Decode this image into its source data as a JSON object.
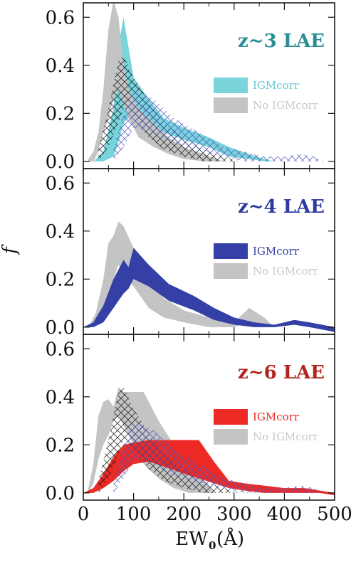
{
  "chart_data": [
    {
      "type": "area",
      "title": "z~3 LAE",
      "title_color": "#2a8f95",
      "xlabel": "EW",
      "xlabel_sub": "0",
      "xlabel_unit": "(Å)",
      "ylabel": "f",
      "xlim": [
        0,
        500
      ],
      "ylim": [
        -0.03,
        0.66
      ],
      "yticks": [
        "0.0",
        "0.2",
        "0.4",
        "0.6"
      ],
      "xticks": [
        "0",
        "100",
        "200",
        "300",
        "400",
        "500"
      ],
      "grid": false,
      "legend": "right",
      "series": [
        {
          "name": "IGMcorr",
          "color": "#79d4dc",
          "text_color": "#6cc7d1",
          "x": [
            20,
            40,
            60,
            70,
            80,
            100,
            130,
            160,
            200,
            250,
            290,
            330,
            360,
            380,
            400
          ],
          "upper": [
            0.0,
            0.04,
            0.22,
            0.48,
            0.6,
            0.35,
            0.26,
            0.18,
            0.14,
            0.1,
            0.06,
            0.03,
            0.01,
            0.0,
            0.0
          ],
          "lower": [
            0.0,
            0.0,
            0.02,
            0.08,
            0.16,
            0.2,
            0.16,
            0.12,
            0.09,
            0.06,
            0.02,
            0.01,
            0.0,
            0.0,
            0.0
          ]
        },
        {
          "name": "No IGMcorr",
          "color": "#c4c4c4",
          "text_color": "#c8c8c8",
          "x": [
            10,
            20,
            30,
            40,
            50,
            60,
            70,
            80,
            90,
            110,
            140,
            170,
            200,
            240,
            280
          ],
          "upper": [
            0.01,
            0.04,
            0.12,
            0.3,
            0.55,
            0.67,
            0.6,
            0.4,
            0.3,
            0.22,
            0.16,
            0.1,
            0.06,
            0.03,
            0.0
          ],
          "lower": [
            0.0,
            0.0,
            0.04,
            0.12,
            0.18,
            0.26,
            0.3,
            0.24,
            0.18,
            0.1,
            0.06,
            0.03,
            0.01,
            0.0,
            0.0
          ]
        }
      ]
    },
    {
      "type": "area",
      "title": "z~4 LAE",
      "title_color": "#2f3a9e",
      "xlim": [
        0,
        500
      ],
      "ylim": [
        -0.03,
        0.66
      ],
      "yticks": [
        "0.0",
        "0.2",
        "0.4",
        "0.6"
      ],
      "xticks": [
        "0",
        "100",
        "200",
        "300",
        "400",
        "500"
      ],
      "grid": false,
      "legend": "right",
      "series": [
        {
          "name": "No IGMcorr",
          "color": "#c4c4c4",
          "text_color": "#c8c8c8",
          "x": [
            10,
            25,
            40,
            50,
            60,
            70,
            80,
            100,
            130,
            160,
            200,
            250,
            300,
            330,
            360,
            380
          ],
          "upper": [
            0.0,
            0.06,
            0.2,
            0.35,
            0.38,
            0.44,
            0.42,
            0.33,
            0.2,
            0.12,
            0.07,
            0.04,
            0.02,
            0.08,
            0.04,
            0.0
          ],
          "lower": [
            0.0,
            0.01,
            0.06,
            0.14,
            0.2,
            0.26,
            0.22,
            0.17,
            0.08,
            0.04,
            0.02,
            0.0,
            0.0,
            0.02,
            0.0,
            0.0
          ]
        },
        {
          "name": "IGMcorr",
          "color": "#3440a6",
          "text_color": "#3440a6",
          "x": [
            0,
            20,
            40,
            60,
            80,
            90,
            100,
            130,
            170,
            220,
            260,
            300,
            340,
            380,
            420,
            450,
            500
          ],
          "upper": [
            0.0,
            0.02,
            0.09,
            0.2,
            0.28,
            0.25,
            0.33,
            0.26,
            0.18,
            0.13,
            0.08,
            0.04,
            0.02,
            0.01,
            0.03,
            0.02,
            0.0
          ],
          "lower": [
            0.0,
            0.0,
            0.02,
            0.08,
            0.14,
            0.16,
            0.2,
            0.17,
            0.11,
            0.07,
            0.03,
            0.01,
            0.0,
            0.0,
            0.01,
            0.0,
            -0.02
          ]
        }
      ]
    },
    {
      "type": "area",
      "title": "z~6 LAE",
      "title_color": "#b3241f",
      "xlim": [
        0,
        500
      ],
      "ylim": [
        -0.03,
        0.66
      ],
      "yticks": [
        "0.0",
        "0.2",
        "0.4",
        "0.6"
      ],
      "xticks": [
        "0",
        "100",
        "200",
        "300",
        "400",
        "500"
      ],
      "grid": false,
      "legend": "right",
      "series": [
        {
          "name": "No IGMcorr",
          "color": "#c4c4c4",
          "text_color": "#c8c8c8",
          "x": [
            10,
            20,
            30,
            40,
            50,
            60,
            70,
            80,
            100,
            120,
            150,
            180,
            210,
            240,
            260
          ],
          "upper": [
            0.02,
            0.12,
            0.32,
            0.38,
            0.39,
            0.36,
            0.44,
            0.42,
            0.42,
            0.42,
            0.3,
            0.2,
            0.12,
            0.05,
            0.0
          ],
          "lower": [
            0.0,
            0.04,
            0.14,
            0.2,
            0.24,
            0.3,
            0.32,
            0.28,
            0.2,
            0.12,
            0.06,
            0.02,
            0.0,
            0.0,
            0.0
          ]
        },
        {
          "name": "IGMcorr",
          "color": "#ee2a27",
          "text_color": "#ee2a27",
          "x": [
            0,
            20,
            40,
            60,
            80,
            100,
            130,
            160,
            200,
            230,
            260,
            290,
            320,
            360,
            400,
            440,
            470,
            500
          ],
          "upper": [
            0.0,
            0.02,
            0.08,
            0.15,
            0.2,
            0.21,
            0.22,
            0.22,
            0.22,
            0.22,
            0.13,
            0.05,
            0.04,
            0.03,
            0.02,
            0.02,
            0.01,
            0.0
          ],
          "lower": [
            0.0,
            0.0,
            0.02,
            0.05,
            0.09,
            0.12,
            0.13,
            0.11,
            0.08,
            0.06,
            0.04,
            0.02,
            0.01,
            0.0,
            0.0,
            0.0,
            0.0,
            -0.01
          ]
        }
      ]
    }
  ]
}
